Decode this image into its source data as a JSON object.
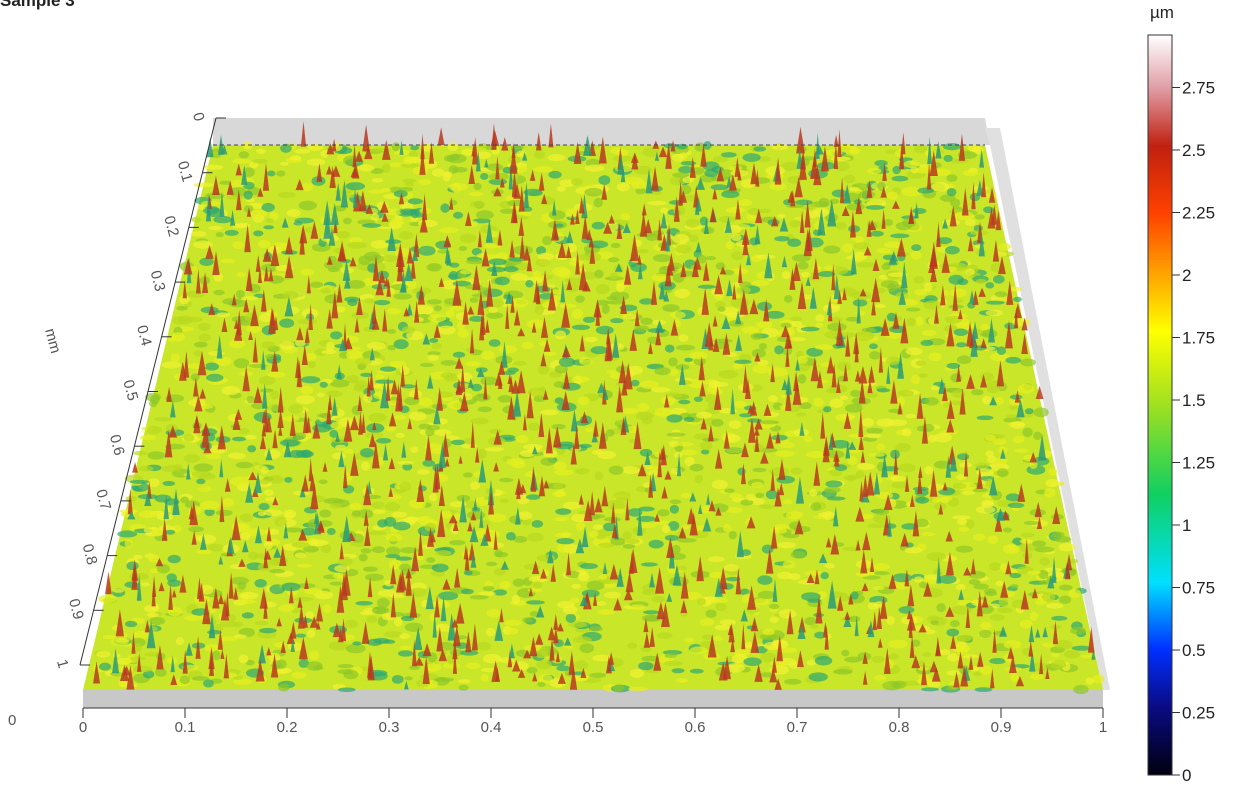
{
  "chart_data": {
    "type": "surface3d",
    "title": "Sample 3",
    "xlim": [
      0,
      1
    ],
    "xticks": [
      0,
      0.1,
      0.2,
      0.3,
      0.4,
      0.5,
      0.6,
      0.7,
      0.8,
      0.9,
      1
    ],
    "ylim": [
      0,
      1
    ],
    "yticks": [
      0,
      0.1,
      0.2,
      0.3,
      0.4,
      0.5,
      0.6,
      0.7,
      0.8,
      0.9,
      1
    ],
    "ylabel": "mm",
    "origin_label": "0",
    "colorbar": {
      "label": "µm",
      "clim": [
        0,
        2.96
      ],
      "ticks": [
        0,
        0.25,
        0.5,
        0.75,
        1,
        1.25,
        1.5,
        1.75,
        2,
        2.25,
        2.5,
        2.75
      ]
    }
  }
}
